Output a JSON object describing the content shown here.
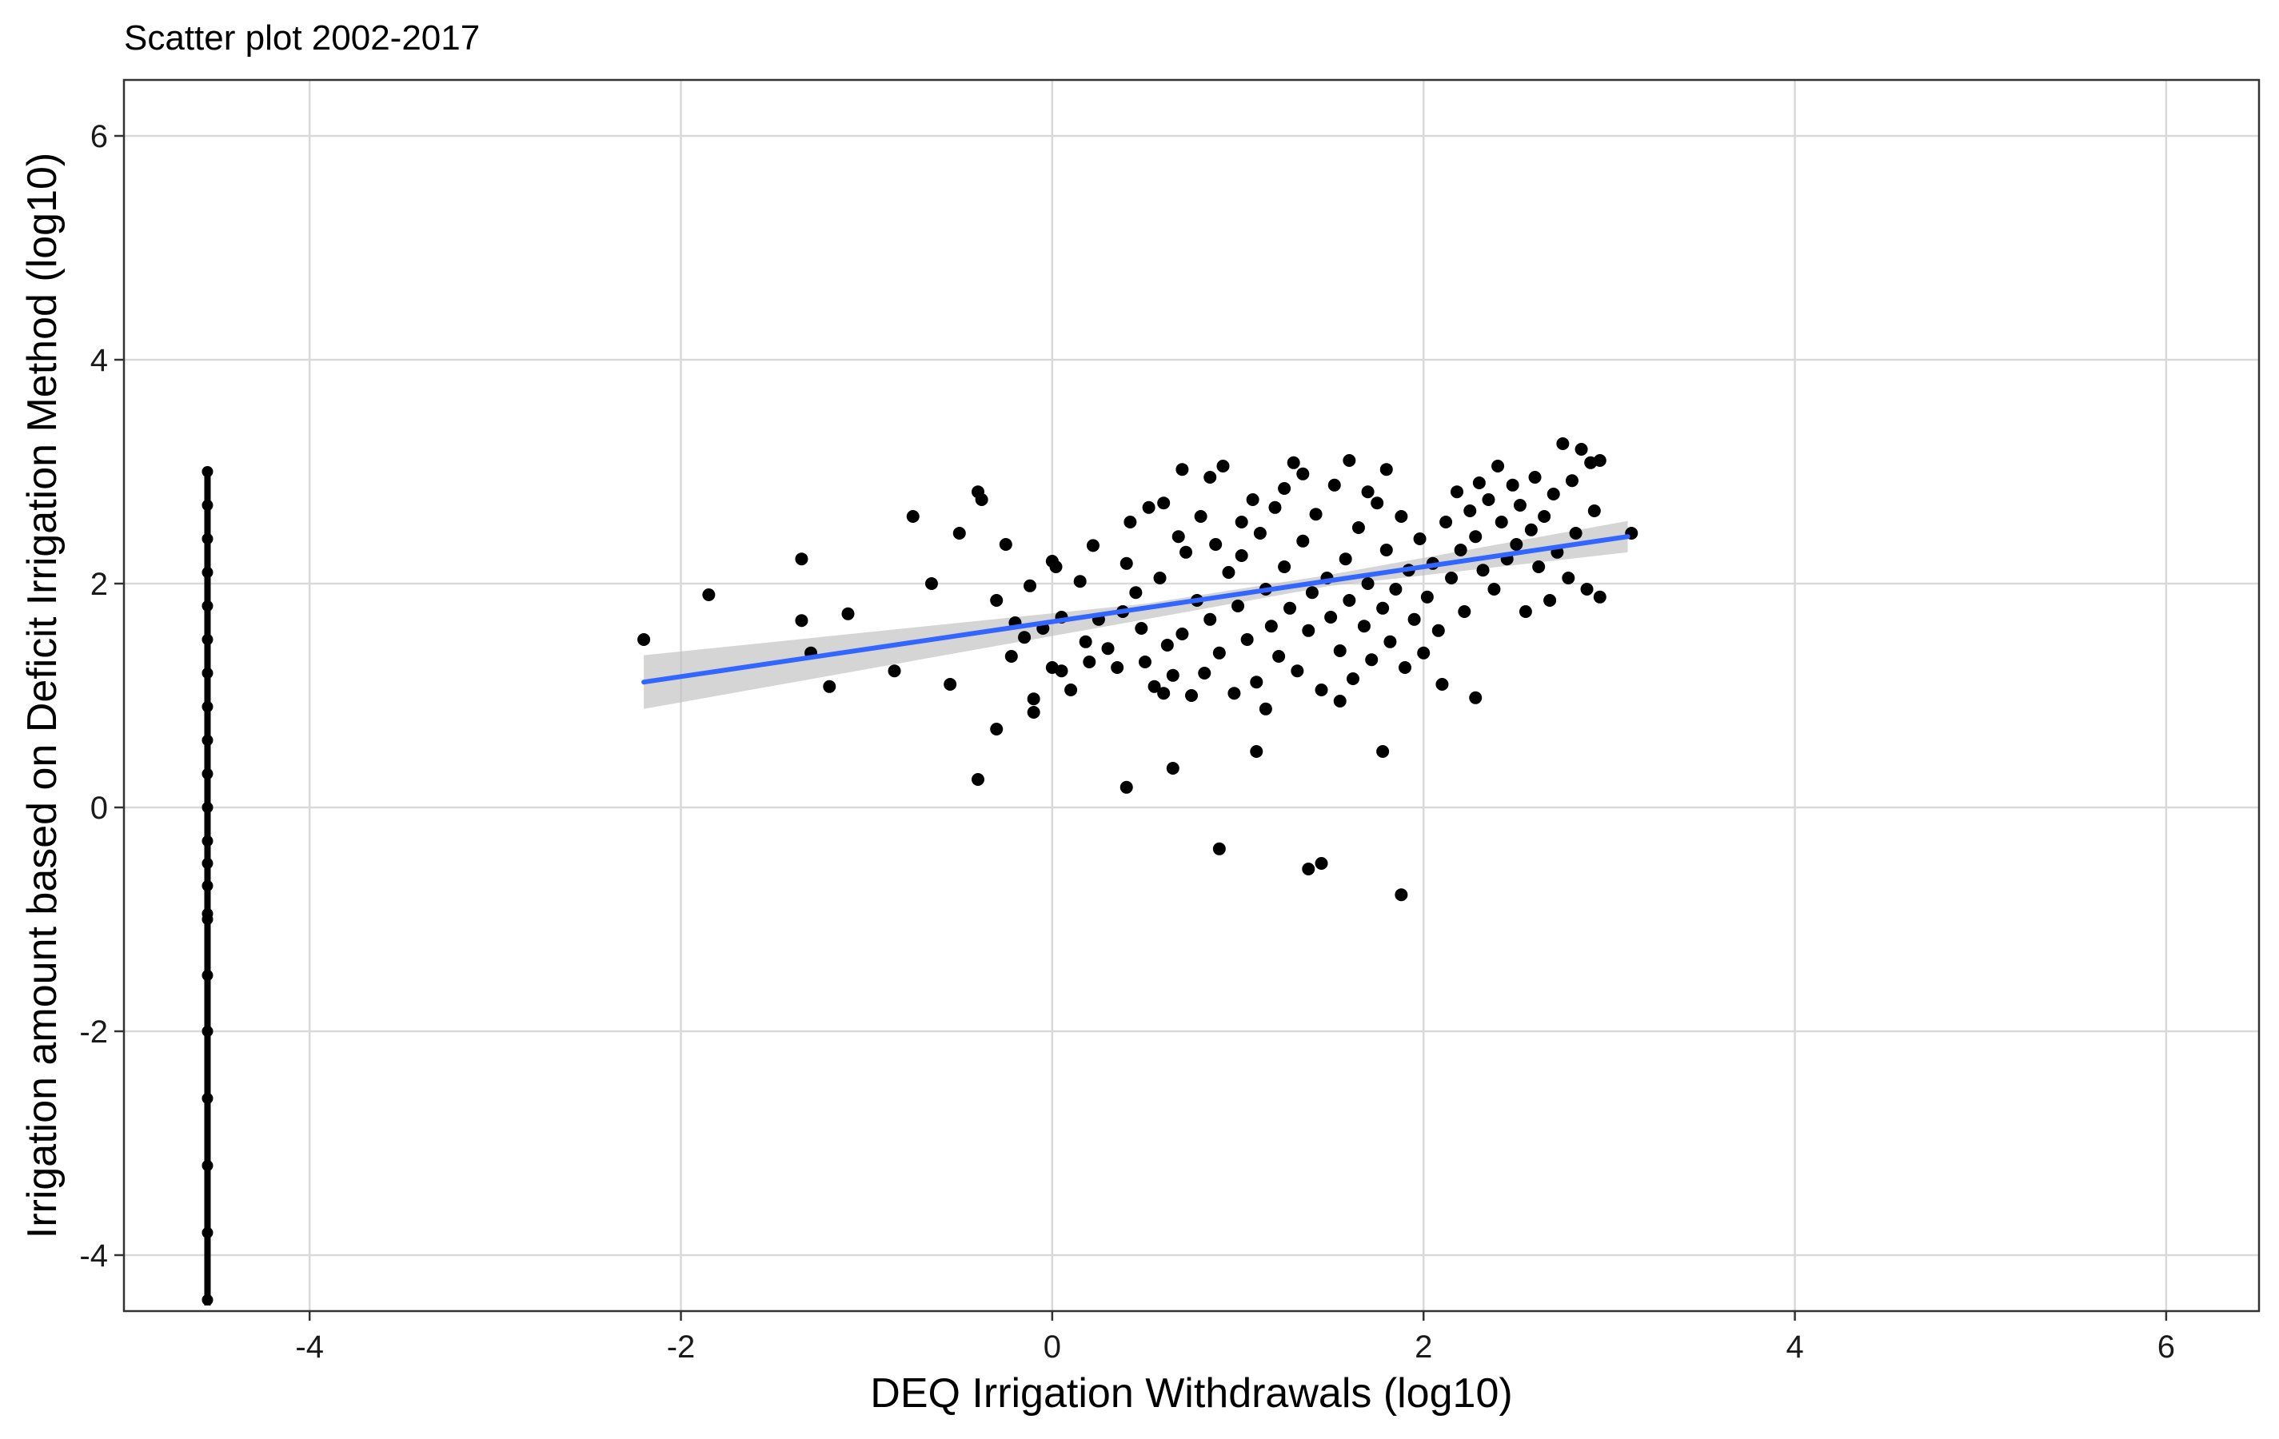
{
  "chart_data": {
    "type": "scatter",
    "title": "Scatter plot 2002-2017",
    "xlabel": "DEQ Irrigation Withdrawals (log10)",
    "ylabel": "Irrigation amount based on Deficit Irrigation Method (log10)",
    "xlim": [
      -5.0,
      6.5
    ],
    "ylim": [
      -4.5,
      6.5
    ],
    "x_ticks": [
      -4,
      -2,
      0,
      2,
      4,
      6
    ],
    "y_ticks": [
      -4,
      -2,
      0,
      2,
      4,
      6
    ],
    "x_tick_labels": [
      "-4",
      "-2",
      "0",
      "2",
      "4",
      "6"
    ],
    "y_tick_labels": [
      "-4",
      "-2",
      "0",
      "2",
      "4",
      "6"
    ],
    "grid": true,
    "point_color": "#000000",
    "fit_line_color": "#3366ff",
    "confidence_band_color": "#bfbfbf",
    "fit_line": {
      "x": [
        -2.2,
        3.1
      ],
      "y": [
        1.12,
        2.42
      ]
    },
    "confidence_band": {
      "x": [
        -2.2,
        0.5,
        1.5,
        3.1
      ],
      "lower": [
        0.88,
        1.68,
        1.98,
        2.28
      ],
      "upper": [
        1.36,
        1.82,
        2.08,
        2.56
      ]
    },
    "left_edge_series": {
      "x": -4.55,
      "y": [
        -4.4,
        -3.8,
        -3.2,
        -2.6,
        -2.0,
        -1.5,
        -1.0,
        -0.95,
        -0.7,
        -0.5,
        -0.3,
        0.0,
        0.3,
        0.6,
        0.9,
        1.2,
        1.5,
        1.8,
        2.1,
        2.4,
        2.7,
        3.0
      ]
    },
    "points": [
      {
        "x": -2.2,
        "y": 1.5
      },
      {
        "x": -1.85,
        "y": 1.9
      },
      {
        "x": -1.35,
        "y": 2.22
      },
      {
        "x": -1.35,
        "y": 1.67
      },
      {
        "x": -1.3,
        "y": 1.38
      },
      {
        "x": -1.2,
        "y": 1.08
      },
      {
        "x": -1.1,
        "y": 1.73
      },
      {
        "x": -0.85,
        "y": 1.22
      },
      {
        "x": -0.75,
        "y": 2.6
      },
      {
        "x": -0.65,
        "y": 2.0
      },
      {
        "x": -0.55,
        "y": 1.1
      },
      {
        "x": -0.5,
        "y": 2.45
      },
      {
        "x": -0.4,
        "y": 2.82
      },
      {
        "x": -0.38,
        "y": 2.75
      },
      {
        "x": -0.4,
        "y": 0.25
      },
      {
        "x": -0.3,
        "y": 1.85
      },
      {
        "x": -0.3,
        "y": 0.7
      },
      {
        "x": -0.25,
        "y": 2.35
      },
      {
        "x": -0.22,
        "y": 1.35
      },
      {
        "x": -0.2,
        "y": 1.65
      },
      {
        "x": -0.15,
        "y": 1.52
      },
      {
        "x": -0.12,
        "y": 1.98
      },
      {
        "x": -0.1,
        "y": 0.85
      },
      {
        "x": -0.1,
        "y": 0.97
      },
      {
        "x": -0.05,
        "y": 1.6
      },
      {
        "x": 0.0,
        "y": 1.25
      },
      {
        "x": 0.0,
        "y": 2.2
      },
      {
        "x": 0.02,
        "y": 2.15
      },
      {
        "x": 0.05,
        "y": 1.7
      },
      {
        "x": 0.05,
        "y": 1.22
      },
      {
        "x": 0.1,
        "y": 1.05
      },
      {
        "x": 0.15,
        "y": 2.02
      },
      {
        "x": 0.18,
        "y": 1.48
      },
      {
        "x": 0.2,
        "y": 1.3
      },
      {
        "x": 0.22,
        "y": 2.34
      },
      {
        "x": 0.25,
        "y": 1.68
      },
      {
        "x": 0.3,
        "y": 1.42
      },
      {
        "x": 0.35,
        "y": 1.25
      },
      {
        "x": 0.38,
        "y": 1.75
      },
      {
        "x": 0.4,
        "y": 2.18
      },
      {
        "x": 0.42,
        "y": 2.55
      },
      {
        "x": 0.45,
        "y": 1.92
      },
      {
        "x": 0.48,
        "y": 1.6
      },
      {
        "x": 0.5,
        "y": 1.3
      },
      {
        "x": 0.52,
        "y": 2.68
      },
      {
        "x": 0.55,
        "y": 1.08
      },
      {
        "x": 0.58,
        "y": 2.05
      },
      {
        "x": 0.6,
        "y": 2.72
      },
      {
        "x": 0.62,
        "y": 1.45
      },
      {
        "x": 0.65,
        "y": 1.18
      },
      {
        "x": 0.68,
        "y": 2.42
      },
      {
        "x": 0.7,
        "y": 1.55
      },
      {
        "x": 0.72,
        "y": 2.28
      },
      {
        "x": 0.75,
        "y": 1.0
      },
      {
        "x": 0.78,
        "y": 1.85
      },
      {
        "x": 0.8,
        "y": 2.6
      },
      {
        "x": 0.82,
        "y": 1.2
      },
      {
        "x": 0.85,
        "y": 1.68
      },
      {
        "x": 0.88,
        "y": 2.35
      },
      {
        "x": 0.9,
        "y": 1.38
      },
      {
        "x": 0.92,
        "y": 3.05
      },
      {
        "x": 0.95,
        "y": 2.1
      },
      {
        "x": 0.98,
        "y": 1.02
      },
      {
        "x": 1.0,
        "y": 1.8
      },
      {
        "x": 1.02,
        "y": 2.25
      },
      {
        "x": 1.05,
        "y": 1.5
      },
      {
        "x": 1.08,
        "y": 2.75
      },
      {
        "x": 1.1,
        "y": 1.12
      },
      {
        "x": 1.12,
        "y": 2.45
      },
      {
        "x": 1.15,
        "y": 1.95
      },
      {
        "x": 1.18,
        "y": 1.62
      },
      {
        "x": 1.2,
        "y": 2.68
      },
      {
        "x": 1.22,
        "y": 1.35
      },
      {
        "x": 1.25,
        "y": 2.15
      },
      {
        "x": 1.28,
        "y": 1.78
      },
      {
        "x": 1.3,
        "y": 3.08
      },
      {
        "x": 1.32,
        "y": 1.22
      },
      {
        "x": 1.35,
        "y": 2.38
      },
      {
        "x": 1.38,
        "y": 1.58
      },
      {
        "x": 1.4,
        "y": 1.92
      },
      {
        "x": 1.42,
        "y": 2.62
      },
      {
        "x": 1.45,
        "y": 1.05
      },
      {
        "x": 1.48,
        "y": 2.05
      },
      {
        "x": 1.5,
        "y": 1.7
      },
      {
        "x": 1.52,
        "y": 2.88
      },
      {
        "x": 1.55,
        "y": 1.4
      },
      {
        "x": 1.58,
        "y": 2.22
      },
      {
        "x": 1.6,
        "y": 1.85
      },
      {
        "x": 1.62,
        "y": 1.15
      },
      {
        "x": 1.65,
        "y": 2.5
      },
      {
        "x": 1.68,
        "y": 1.62
      },
      {
        "x": 1.7,
        "y": 2.0
      },
      {
        "x": 1.72,
        "y": 1.32
      },
      {
        "x": 1.75,
        "y": 2.72
      },
      {
        "x": 1.78,
        "y": 1.78
      },
      {
        "x": 1.8,
        "y": 2.3
      },
      {
        "x": 1.82,
        "y": 1.48
      },
      {
        "x": 1.85,
        "y": 1.95
      },
      {
        "x": 1.88,
        "y": 2.6
      },
      {
        "x": 1.9,
        "y": 1.25
      },
      {
        "x": 1.92,
        "y": 2.12
      },
      {
        "x": 1.95,
        "y": 1.68
      },
      {
        "x": 1.98,
        "y": 2.4
      },
      {
        "x": 2.0,
        "y": 1.38
      },
      {
        "x": 2.02,
        "y": 1.88
      },
      {
        "x": 2.05,
        "y": 2.18
      },
      {
        "x": 2.08,
        "y": 1.58
      },
      {
        "x": 2.1,
        "y": 1.1
      },
      {
        "x": 2.12,
        "y": 2.55
      },
      {
        "x": 2.15,
        "y": 2.05
      },
      {
        "x": 2.18,
        "y": 2.82
      },
      {
        "x": 2.2,
        "y": 2.3
      },
      {
        "x": 2.22,
        "y": 1.75
      },
      {
        "x": 2.25,
        "y": 2.65
      },
      {
        "x": 2.28,
        "y": 2.42
      },
      {
        "x": 2.3,
        "y": 2.9
      },
      {
        "x": 2.32,
        "y": 2.12
      },
      {
        "x": 2.35,
        "y": 2.75
      },
      {
        "x": 2.38,
        "y": 1.95
      },
      {
        "x": 2.4,
        "y": 3.05
      },
      {
        "x": 2.42,
        "y": 2.55
      },
      {
        "x": 2.45,
        "y": 2.22
      },
      {
        "x": 2.48,
        "y": 2.88
      },
      {
        "x": 2.5,
        "y": 2.35
      },
      {
        "x": 2.52,
        "y": 2.7
      },
      {
        "x": 2.55,
        "y": 1.75
      },
      {
        "x": 2.58,
        "y": 2.48
      },
      {
        "x": 2.6,
        "y": 2.95
      },
      {
        "x": 2.62,
        "y": 2.15
      },
      {
        "x": 2.65,
        "y": 2.6
      },
      {
        "x": 2.68,
        "y": 1.85
      },
      {
        "x": 2.7,
        "y": 2.8
      },
      {
        "x": 2.72,
        "y": 2.28
      },
      {
        "x": 2.75,
        "y": 3.25
      },
      {
        "x": 2.78,
        "y": 2.05
      },
      {
        "x": 2.8,
        "y": 2.92
      },
      {
        "x": 2.82,
        "y": 2.45
      },
      {
        "x": 2.85,
        "y": 3.2
      },
      {
        "x": 2.88,
        "y": 1.95
      },
      {
        "x": 2.9,
        "y": 3.08
      },
      {
        "x": 2.92,
        "y": 2.65
      },
      {
        "x": 2.95,
        "y": 1.88
      },
      {
        "x": 2.95,
        "y": 3.1
      },
      {
        "x": 3.12,
        "y": 2.45
      },
      {
        "x": 0.4,
        "y": 0.18
      },
      {
        "x": 0.65,
        "y": 0.35
      },
      {
        "x": 0.9,
        "y": -0.37
      },
      {
        "x": 1.1,
        "y": 0.5
      },
      {
        "x": 1.38,
        "y": -0.55
      },
      {
        "x": 1.45,
        "y": -0.5
      },
      {
        "x": 1.78,
        "y": 0.5
      },
      {
        "x": 1.88,
        "y": -0.78
      },
      {
        "x": 2.28,
        "y": 0.98
      },
      {
        "x": 1.15,
        "y": 0.88
      },
      {
        "x": 1.55,
        "y": 0.95
      },
      {
        "x": 0.6,
        "y": 1.02
      },
      {
        "x": 0.85,
        "y": 2.95
      },
      {
        "x": 1.02,
        "y": 2.55
      },
      {
        "x": 1.25,
        "y": 2.85
      },
      {
        "x": 1.6,
        "y": 3.1
      },
      {
        "x": 1.8,
        "y": 3.02
      },
      {
        "x": 1.35,
        "y": 2.98
      },
      {
        "x": 0.7,
        "y": 3.02
      },
      {
        "x": 1.7,
        "y": 2.82
      }
    ]
  }
}
